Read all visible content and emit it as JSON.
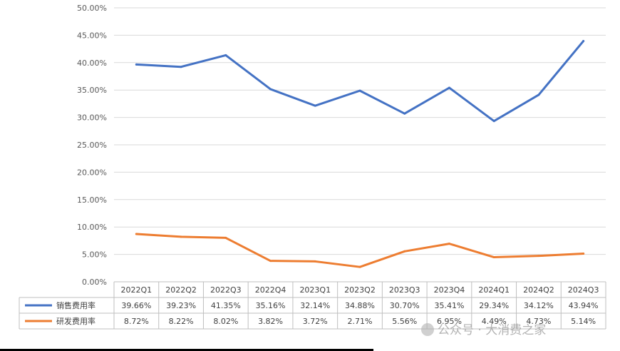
{
  "chart_data": {
    "type": "line",
    "categories": [
      "2022Q1",
      "2022Q2",
      "2022Q3",
      "2022Q4",
      "2023Q1",
      "2023Q2",
      "2023Q3",
      "2023Q4",
      "2024Q1",
      "2024Q2",
      "2024Q3"
    ],
    "ylim": [
      0,
      50
    ],
    "ytick_labels": [
      "0.00%",
      "5.00%",
      "10.00%",
      "15.00%",
      "20.00%",
      "25.00%",
      "30.00%",
      "35.00%",
      "40.00%",
      "45.00%",
      "50.00%"
    ],
    "grid": true,
    "legend_placement": "data-table",
    "series": [
      {
        "name": "销售费用率",
        "color": "#4472c4",
        "values": [
          39.66,
          39.23,
          41.35,
          35.16,
          32.14,
          34.88,
          30.7,
          35.41,
          29.34,
          34.12,
          43.94
        ],
        "labels": [
          "39.66%",
          "39.23%",
          "41.35%",
          "35.16%",
          "32.14%",
          "34.88%",
          "30.70%",
          "35.41%",
          "29.34%",
          "34.12%",
          "43.94%"
        ]
      },
      {
        "name": "研发费用率",
        "color": "#ed7d31",
        "values": [
          8.72,
          8.22,
          8.02,
          3.82,
          3.72,
          2.71,
          5.56,
          6.95,
          4.49,
          4.73,
          5.14
        ],
        "labels": [
          "8.72%",
          "8.22%",
          "8.02%",
          "3.82%",
          "3.72%",
          "2.71%",
          "5.56%",
          "6.95%",
          "4.49%",
          "4.73%",
          "5.14%"
        ]
      }
    ]
  },
  "watermark": "公众号 · 大消费之家"
}
